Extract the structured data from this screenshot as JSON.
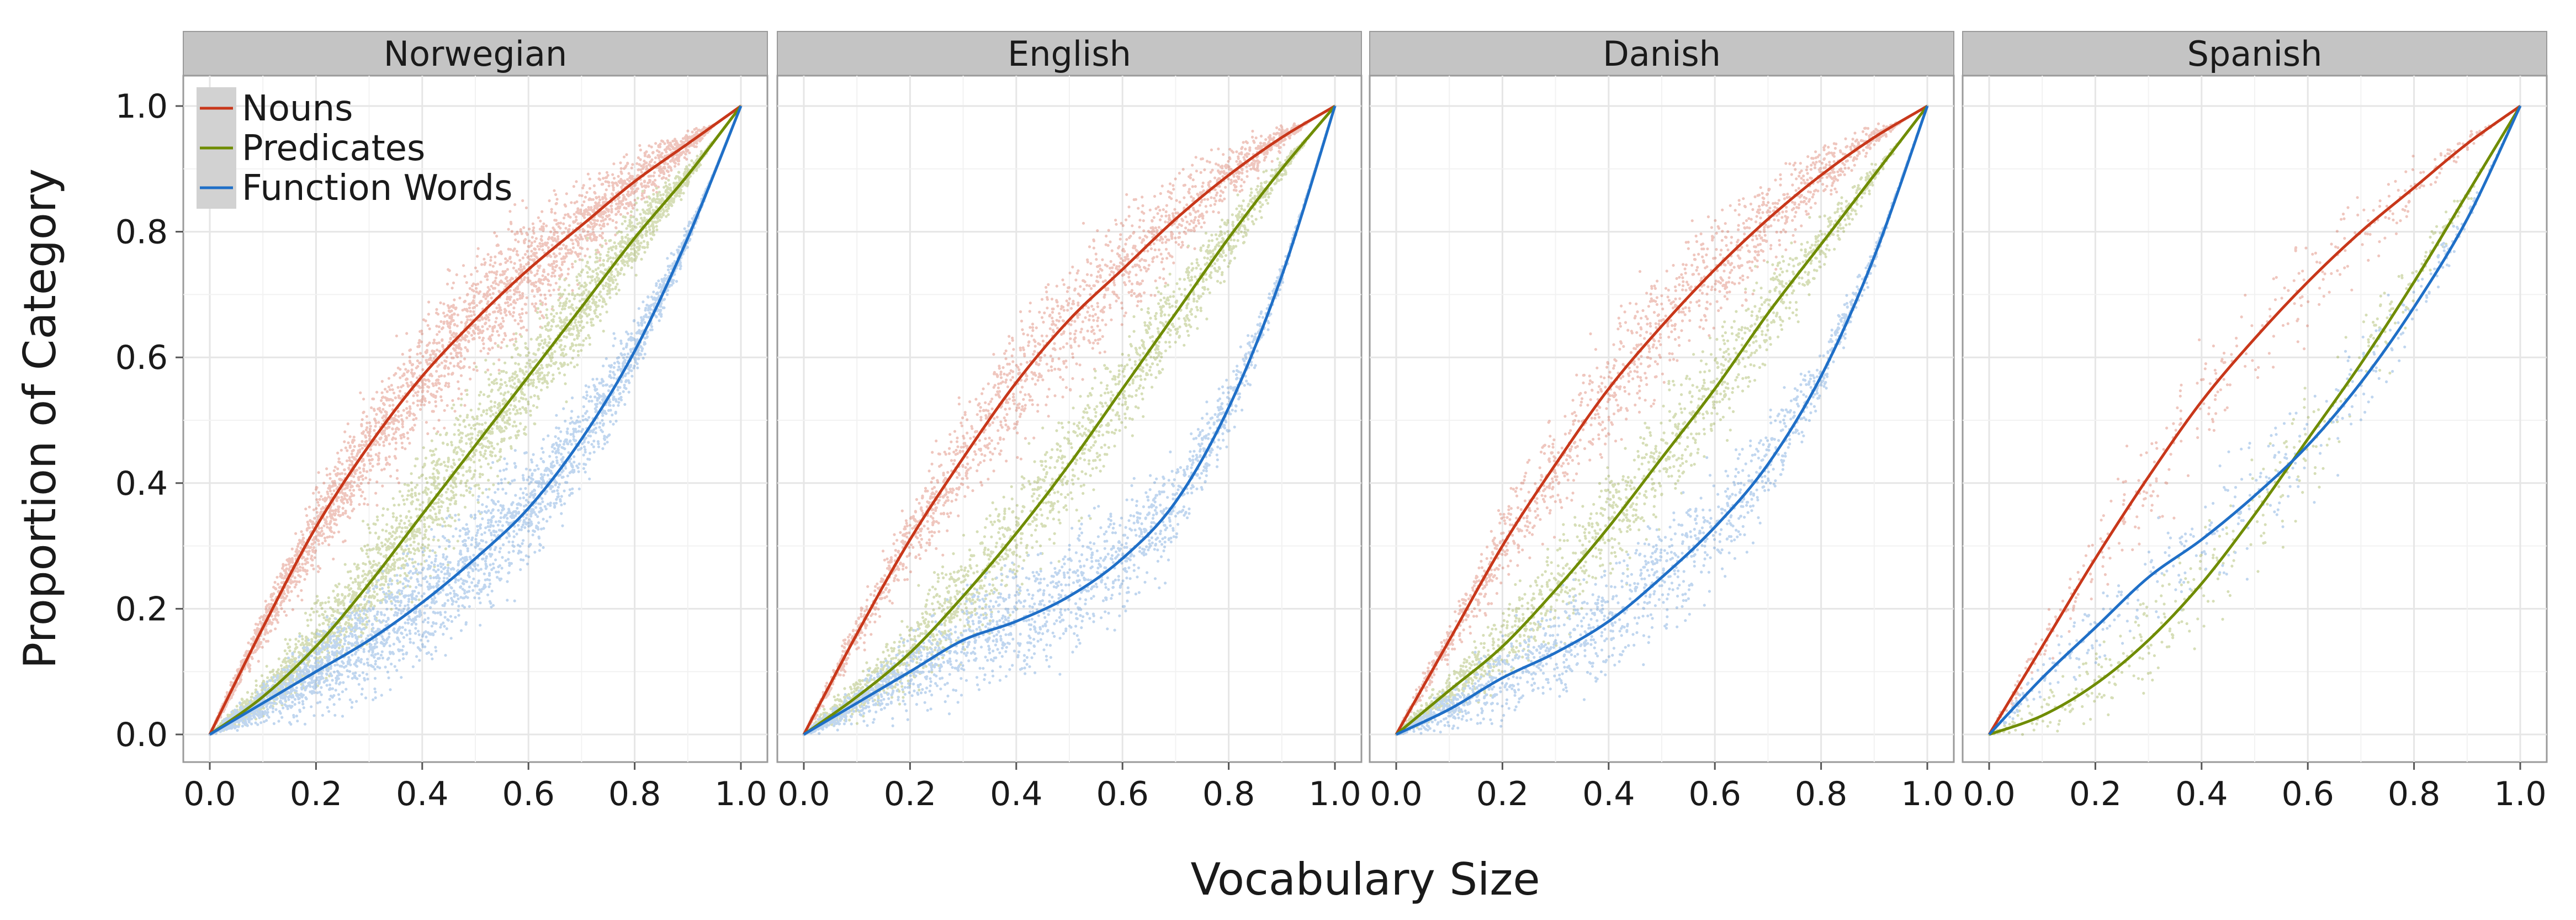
{
  "chart_data": {
    "type": "line",
    "facets": [
      "Norwegian",
      "English",
      "Danish",
      "Spanish"
    ],
    "xlabel": "Vocabulary Size",
    "ylabel": "Proportion of Category",
    "xlim": [
      0,
      1
    ],
    "ylim": [
      0,
      1
    ],
    "x_ticks": [
      "0.0",
      "0.2",
      "0.4",
      "0.6",
      "0.8",
      "1.0"
    ],
    "y_ticks": [
      "0.0",
      "0.2",
      "0.4",
      "0.6",
      "0.8",
      "1.0"
    ],
    "grid": true,
    "legend": {
      "placement": "top-left",
      "entries": [
        "Nouns",
        "Predicates",
        "Function Words"
      ]
    },
    "series_colors": {
      "Nouns": "#c8371a",
      "Predicates": "#6f8c00",
      "Function Words": "#1f6fc7"
    },
    "x": [
      0.0,
      0.1,
      0.2,
      0.3,
      0.4,
      0.5,
      0.6,
      0.7,
      0.8,
      0.9,
      1.0
    ],
    "panels": [
      {
        "facet": "Norwegian",
        "series": [
          {
            "name": "Nouns",
            "values": [
              0.0,
              0.17,
              0.33,
              0.46,
              0.57,
              0.66,
              0.74,
              0.81,
              0.88,
              0.94,
              1.0
            ]
          },
          {
            "name": "Predicates",
            "values": [
              0.0,
              0.06,
              0.14,
              0.24,
              0.35,
              0.46,
              0.57,
              0.68,
              0.79,
              0.89,
              1.0
            ]
          },
          {
            "name": "Function Words",
            "values": [
              0.0,
              0.05,
              0.1,
              0.15,
              0.21,
              0.28,
              0.36,
              0.47,
              0.61,
              0.79,
              1.0
            ]
          }
        ]
      },
      {
        "facet": "English",
        "series": [
          {
            "name": "Nouns",
            "values": [
              0.0,
              0.16,
              0.31,
              0.44,
              0.56,
              0.66,
              0.74,
              0.82,
              0.89,
              0.95,
              1.0
            ]
          },
          {
            "name": "Predicates",
            "values": [
              0.0,
              0.06,
              0.13,
              0.22,
              0.32,
              0.43,
              0.55,
              0.67,
              0.79,
              0.9,
              1.0
            ]
          },
          {
            "name": "Function Words",
            "values": [
              0.0,
              0.05,
              0.1,
              0.15,
              0.18,
              0.22,
              0.28,
              0.37,
              0.52,
              0.73,
              1.0
            ]
          }
        ]
      },
      {
        "facet": "Danish",
        "series": [
          {
            "name": "Nouns",
            "values": [
              0.0,
              0.15,
              0.3,
              0.43,
              0.55,
              0.65,
              0.74,
              0.82,
              0.89,
              0.95,
              1.0
            ]
          },
          {
            "name": "Predicates",
            "values": [
              0.0,
              0.07,
              0.14,
              0.23,
              0.33,
              0.44,
              0.55,
              0.67,
              0.78,
              0.89,
              1.0
            ]
          },
          {
            "name": "Function Words",
            "values": [
              0.0,
              0.04,
              0.09,
              0.13,
              0.18,
              0.25,
              0.33,
              0.43,
              0.57,
              0.76,
              1.0
            ]
          }
        ]
      },
      {
        "facet": "Spanish",
        "series": [
          {
            "name": "Nouns",
            "values": [
              0.0,
              0.14,
              0.28,
              0.41,
              0.53,
              0.63,
              0.72,
              0.8,
              0.87,
              0.94,
              1.0
            ]
          },
          {
            "name": "Predicates",
            "values": [
              0.0,
              0.03,
              0.08,
              0.15,
              0.24,
              0.35,
              0.47,
              0.59,
              0.72,
              0.86,
              1.0
            ]
          },
          {
            "name": "Function Words",
            "values": [
              0.0,
              0.09,
              0.17,
              0.25,
              0.31,
              0.38,
              0.46,
              0.56,
              0.68,
              0.82,
              1.0
            ]
          }
        ]
      }
    ]
  }
}
